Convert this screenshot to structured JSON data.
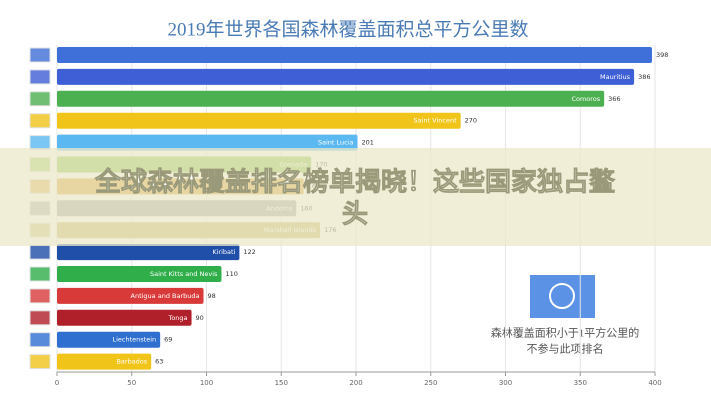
{
  "chart_data": {
    "type": "hbar",
    "title": "2019年世界各国森林覆盖面积总平方公里数",
    "categories": [
      null,
      "Mauritius",
      "Comoros",
      "Saint Vincent",
      "Saint Lucia",
      "Grenada",
      null,
      "Andorra",
      "Marshall Islands",
      "Kiribati",
      "Saint Kitts and Nevis",
      "Antigua and Barbuda",
      "Tonga",
      "Liechtenstein",
      "Barbados"
    ],
    "values": [
      398,
      386,
      366,
      270,
      201,
      170,
      165,
      160,
      176,
      122,
      110,
      98,
      90,
      69,
      63
    ],
    "colors": [
      "#3f6fd8",
      "#3f5fd6",
      "#4caf50",
      "#f0c419",
      "#5bb8f0",
      "#8bc34a",
      "#e0a030",
      "#9e9e9e",
      "#c9b26a",
      "#1f4fa8",
      "#2fae4a",
      "#d83a3a",
      "#b0202a",
      "#2f6fd0",
      "#f0c419"
    ],
    "xlim": [
      0,
      400
    ],
    "xticks": [
      0,
      50,
      100,
      150,
      200,
      250,
      300,
      350,
      400
    ],
    "note": [
      "森林覆盖面积小于1平方公里的",
      "不参与此项排名"
    ]
  },
  "overlay": {
    "headline": [
      "全球森林覆盖排名榜单揭晓！这些国家独占鳌",
      "头"
    ]
  }
}
